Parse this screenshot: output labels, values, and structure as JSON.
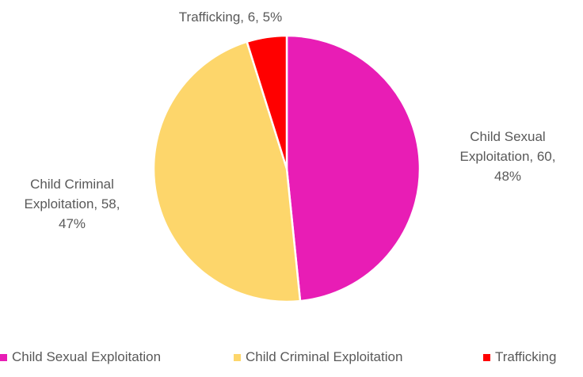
{
  "chart_data": {
    "type": "pie",
    "title": "",
    "slices": [
      {
        "label": "Child Sexual Exploitation",
        "value": 60,
        "percent": 48,
        "color": "#E81DB5",
        "data_label": [
          "Child Sexual",
          "Exploitation, 60,",
          "48%"
        ]
      },
      {
        "label": "Child Criminal Exploitation",
        "value": 58,
        "percent": 47,
        "color": "#FDD66B",
        "data_label": [
          "Child Criminal",
          "Exploitation, 58,",
          "47%"
        ]
      },
      {
        "label": "Trafficking",
        "value": 6,
        "percent": 5,
        "color": "#FF0000",
        "data_label": [
          "Trafficking, 6, 5%"
        ]
      }
    ],
    "start_angle_deg": 0,
    "direction": "clockwise",
    "legend_position": "bottom"
  }
}
